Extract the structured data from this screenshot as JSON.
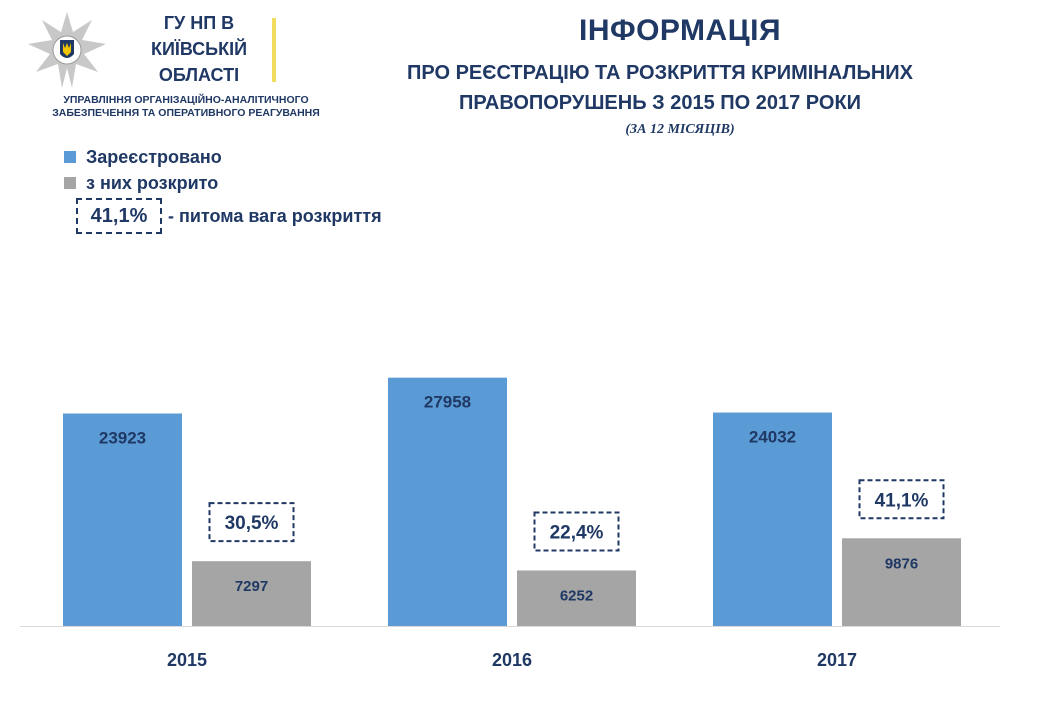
{
  "header": {
    "org_lines": [
      "ГУ НП В",
      "КИЇВСЬКІЙ",
      "ОБЛАСТІ"
    ],
    "dept_lines": [
      "УПРАВЛІННЯ ОРГАНІЗАЦІЙНО-АНАЛІТИЧНОГО",
      "ЗАБЕЗПЕЧЕННЯ ТА ОПЕРАТИВНОГО  РЕАГУВАННЯ"
    ],
    "title": "ІНФОРМАЦІЯ",
    "subtitle_lines": [
      "ПРО РЕЄСТРАЦІЮ ТА РОЗКРИТТЯ КРИМІНАЛЬНИХ",
      "ПРАВОПОРУШЕНЬ З 2015 ПО 2017 РОКИ"
    ],
    "period": "(ЗА 12 МІСЯЦІВ)"
  },
  "legend": {
    "note_value": "41,1%",
    "note_text": "- питома  вага розкриття"
  },
  "colors": {
    "registered": "#5b9bd5",
    "solved": "#a5a5a5",
    "text": "#1f3864",
    "accent_divider": "#f2dc5d"
  },
  "chart_data": {
    "type": "bar",
    "categories": [
      "2015",
      "2016",
      "2017"
    ],
    "series": [
      {
        "name": "Зареєстровано",
        "values": [
          23923,
          27958,
          24032
        ],
        "labels": [
          "23923",
          "27958",
          "24032"
        ]
      },
      {
        "name": "з них розкрито",
        "values": [
          7297,
          6252,
          9876
        ],
        "labels": [
          "7297",
          "6252",
          "9876"
        ]
      }
    ],
    "annotations": [
      "30,5%",
      "22,4%",
      "41,1%"
    ],
    "ylim": [
      0,
      34000
    ],
    "grid": false,
    "legend_position": "top-left"
  }
}
